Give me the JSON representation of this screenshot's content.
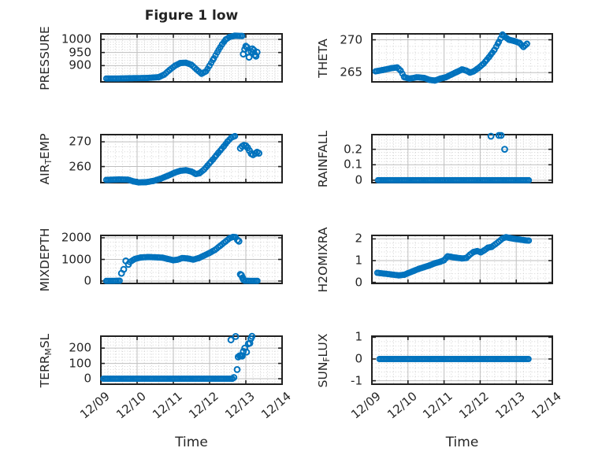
{
  "figure": {
    "title": "Figure 1 low",
    "xlabel": "Time"
  },
  "colors": {
    "marker": "#0072BD",
    "axis_box": "#212121",
    "tick_text": "#262626",
    "grid_major": "#bfbfbf",
    "grid_minor": "#d2d2d2",
    "background": "#ffffff"
  },
  "x_axis": {
    "tick_labels": [
      "12/09",
      "12/10",
      "12/11",
      "12/12",
      "12/13",
      "12/14"
    ],
    "lim_days": [
      0,
      5
    ],
    "minor_step_days": 0.2
  },
  "chart_data": [
    {
      "type": "scatter",
      "name": "PRESSURE",
      "row": 1,
      "col": 1,
      "ylabel_parts": [
        {
          "t": "PRESSURE"
        }
      ],
      "yticks": [
        900,
        950,
        1000
      ],
      "ylim": [
        838,
        1021
      ],
      "y_minor_step": 10,
      "segments": [
        [
          [
            0.15,
            851
          ],
          [
            0.5,
            851
          ],
          [
            0.9,
            852
          ],
          [
            1.3,
            853
          ],
          [
            1.6,
            856
          ],
          [
            1.75,
            866
          ],
          [
            1.9,
            884
          ],
          [
            2.05,
            900
          ],
          [
            2.2,
            910
          ],
          [
            2.35,
            911
          ],
          [
            2.5,
            903
          ],
          [
            2.65,
            884
          ],
          [
            2.78,
            869
          ],
          [
            2.9,
            878
          ],
          [
            3.0,
            900
          ],
          [
            3.12,
            928
          ],
          [
            3.25,
            960
          ],
          [
            3.35,
            982
          ],
          [
            3.45,
            1000
          ],
          [
            3.55,
            1009
          ],
          [
            3.7,
            1014
          ],
          [
            3.9,
            1013
          ]
        ]
      ],
      "points": [
        [
          3.93,
          944
        ],
        [
          3.97,
          962
        ],
        [
          4.0,
          974
        ],
        [
          4.03,
          970
        ],
        [
          4.06,
          951
        ],
        [
          4.09,
          932
        ],
        [
          4.15,
          953
        ],
        [
          4.18,
          964
        ],
        [
          4.22,
          959
        ],
        [
          4.25,
          941
        ],
        [
          4.28,
          936
        ],
        [
          4.31,
          951
        ]
      ]
    },
    {
      "type": "scatter",
      "name": "THETA",
      "row": 1,
      "col": 2,
      "ylabel_parts": [
        {
          "t": "THETA"
        }
      ],
      "yticks": [
        265,
        270
      ],
      "ylim": [
        263.6,
        270.9
      ],
      "y_minor_step": 1,
      "segments": [
        [
          [
            0.1,
            265.2
          ],
          [
            0.3,
            265.4
          ],
          [
            0.55,
            265.7
          ],
          [
            0.7,
            265.8
          ],
          [
            0.8,
            265.3
          ],
          [
            0.9,
            264.3
          ],
          [
            1.05,
            264.1
          ],
          [
            1.25,
            264.3
          ],
          [
            1.45,
            264.2
          ],
          [
            1.6,
            263.9
          ],
          [
            1.75,
            263.8
          ],
          [
            1.9,
            264.1
          ],
          [
            2.05,
            264.3
          ],
          [
            2.2,
            264.7
          ],
          [
            2.35,
            265.1
          ],
          [
            2.5,
            265.5
          ],
          [
            2.62,
            265.3
          ],
          [
            2.72,
            265.0
          ],
          [
            2.82,
            265.2
          ],
          [
            2.95,
            265.7
          ],
          [
            3.1,
            266.4
          ],
          [
            3.25,
            267.4
          ],
          [
            3.4,
            268.5
          ],
          [
            3.52,
            269.7
          ],
          [
            3.62,
            270.8
          ],
          [
            3.7,
            270.4
          ],
          [
            3.8,
            270.0
          ],
          [
            3.95,
            269.8
          ],
          [
            4.1,
            269.5
          ],
          [
            4.2,
            268.9
          ],
          [
            4.3,
            269.4
          ]
        ]
      ],
      "points": []
    },
    {
      "type": "scatter",
      "name": "AIR_TEMP",
      "row": 2,
      "col": 1,
      "ylabel_parts": [
        {
          "t": "AIR"
        },
        {
          "t": "T",
          "sub": true
        },
        {
          "t": "EMP"
        }
      ],
      "yticks": [
        260,
        270
      ],
      "ylim": [
        253.5,
        272.9
      ],
      "y_minor_step": 2,
      "segments": [
        [
          [
            0.15,
            254.6
          ],
          [
            0.5,
            254.8
          ],
          [
            0.75,
            254.7
          ],
          [
            0.9,
            254.0
          ],
          [
            1.05,
            253.6
          ],
          [
            1.25,
            253.7
          ],
          [
            1.45,
            254.2
          ],
          [
            1.65,
            255.1
          ],
          [
            1.85,
            256.3
          ],
          [
            2.05,
            257.6
          ],
          [
            2.2,
            258.3
          ],
          [
            2.35,
            258.5
          ],
          [
            2.5,
            258.0
          ],
          [
            2.62,
            257.0
          ],
          [
            2.72,
            257.3
          ],
          [
            2.85,
            258.8
          ],
          [
            2.95,
            260.5
          ],
          [
            3.1,
            263.0
          ],
          [
            3.25,
            265.7
          ],
          [
            3.4,
            268.3
          ],
          [
            3.5,
            270.2
          ],
          [
            3.6,
            271.7
          ],
          [
            3.7,
            272.3
          ]
        ]
      ],
      "points": [
        [
          3.85,
          267.4
        ],
        [
          3.9,
          268.2
        ],
        [
          3.95,
          268.6
        ],
        [
          4.0,
          268.4
        ],
        [
          4.05,
          267.6
        ],
        [
          4.1,
          266.4
        ],
        [
          4.15,
          265.2
        ],
        [
          4.2,
          264.8
        ],
        [
          4.26,
          265.3
        ],
        [
          4.31,
          265.8
        ],
        [
          4.36,
          265.4
        ]
      ]
    },
    {
      "type": "scatter",
      "name": "RAINFALL",
      "row": 2,
      "col": 2,
      "ylabel_parts": [
        {
          "t": "RAINFALL"
        }
      ],
      "yticks": [
        0,
        0.1,
        0.2
      ],
      "ylim": [
        -0.016,
        0.295
      ],
      "y_minor_step": 0.02,
      "segments": [
        [
          [
            0.17,
            0
          ],
          [
            4.35,
            0
          ]
        ]
      ],
      "points": [
        [
          3.3,
          0.285
        ],
        [
          3.52,
          0.29
        ],
        [
          3.58,
          0.29
        ],
        [
          3.68,
          0.2
        ]
      ]
    },
    {
      "type": "scatter",
      "name": "MIXDEPTH",
      "row": 3,
      "col": 1,
      "ylabel_parts": [
        {
          "t": "MIXDEPTH"
        }
      ],
      "yticks": [
        0,
        1000,
        2000
      ],
      "ylim": [
        -110,
        2110
      ],
      "y_minor_step": 200,
      "segments": [
        [
          [
            0.15,
            5
          ],
          [
            0.52,
            15
          ]
        ],
        [
          [
            0.8,
            880
          ],
          [
            0.95,
            1030
          ],
          [
            1.1,
            1090
          ],
          [
            1.3,
            1110
          ],
          [
            1.5,
            1100
          ],
          [
            1.7,
            1080
          ],
          [
            1.85,
            1020
          ],
          [
            2.0,
            960
          ],
          [
            2.12,
            990
          ],
          [
            2.25,
            1065
          ],
          [
            2.4,
            1040
          ],
          [
            2.55,
            990
          ],
          [
            2.7,
            1060
          ],
          [
            2.85,
            1180
          ],
          [
            3.0,
            1300
          ],
          [
            3.15,
            1440
          ],
          [
            3.3,
            1640
          ],
          [
            3.45,
            1840
          ],
          [
            3.55,
            1980
          ],
          [
            3.65,
            2040
          ],
          [
            3.72,
            2030
          ]
        ],
        [
          [
            3.97,
            15
          ],
          [
            4.32,
            5
          ]
        ]
      ],
      "points": [
        [
          0.57,
          360
        ],
        [
          0.63,
          540
        ],
        [
          0.69,
          930
        ],
        [
          0.76,
          770
        ],
        [
          3.77,
          1900
        ],
        [
          3.81,
          1840
        ],
        [
          3.85,
          310
        ],
        [
          3.88,
          265
        ],
        [
          3.91,
          150
        ],
        [
          3.94,
          60
        ]
      ]
    },
    {
      "type": "scatter",
      "name": "H2OMIXRA",
      "row": 3,
      "col": 2,
      "ylabel_parts": [
        {
          "t": "H2OMIXRA"
        }
      ],
      "yticks": [
        0,
        1,
        2
      ],
      "ylim": [
        -0.05,
        2.16
      ],
      "y_minor_step": 0.2,
      "segments": [
        [
          [
            0.15,
            0.44
          ],
          [
            0.35,
            0.4
          ],
          [
            0.55,
            0.36
          ],
          [
            0.75,
            0.32
          ],
          [
            0.9,
            0.35
          ],
          [
            1.0,
            0.42
          ],
          [
            1.15,
            0.52
          ],
          [
            1.3,
            0.62
          ],
          [
            1.45,
            0.7
          ],
          [
            1.6,
            0.78
          ],
          [
            1.75,
            0.88
          ],
          [
            1.9,
            0.95
          ],
          [
            2.0,
            1.02
          ],
          [
            2.1,
            1.2
          ],
          [
            2.2,
            1.17
          ],
          [
            2.35,
            1.13
          ],
          [
            2.5,
            1.1
          ],
          [
            2.62,
            1.12
          ],
          [
            2.72,
            1.28
          ],
          [
            2.82,
            1.4
          ],
          [
            2.92,
            1.44
          ],
          [
            3.02,
            1.38
          ],
          [
            3.12,
            1.48
          ],
          [
            3.22,
            1.6
          ],
          [
            3.32,
            1.63
          ],
          [
            3.42,
            1.75
          ],
          [
            3.52,
            1.88
          ],
          [
            3.62,
            2.02
          ],
          [
            3.72,
            2.08
          ],
          [
            3.82,
            2.04
          ],
          [
            3.95,
            2.0
          ],
          [
            4.1,
            1.97
          ],
          [
            4.25,
            1.93
          ],
          [
            4.35,
            1.92
          ]
        ]
      ],
      "points": []
    },
    {
      "type": "scatter",
      "name": "TERR_MSL",
      "row": 4,
      "col": 1,
      "ylabel_parts": [
        {
          "t": "TERR"
        },
        {
          "t": "M",
          "sub": true
        },
        {
          "t": "SL"
        }
      ],
      "yticks": [
        0,
        100,
        200
      ],
      "ylim": [
        -36,
        278
      ],
      "y_minor_step": 20,
      "segments": [
        [
          [
            0.07,
            0
          ],
          [
            3.63,
            0
          ]
        ]
      ],
      "points": [
        [
          3.59,
          254
        ],
        [
          3.72,
          276
        ],
        [
          3.67,
          8
        ],
        [
          3.76,
          60
        ],
        [
          3.79,
          142
        ],
        [
          3.83,
          150
        ],
        [
          3.87,
          152
        ],
        [
          3.9,
          148
        ],
        [
          3.93,
          178
        ],
        [
          3.97,
          200
        ],
        [
          4.02,
          174
        ],
        [
          4.07,
          228
        ],
        [
          4.11,
          232
        ],
        [
          4.14,
          262
        ],
        [
          4.17,
          277
        ]
      ]
    },
    {
      "type": "scatter",
      "name": "SUN_FLUX",
      "row": 4,
      "col": 2,
      "ylabel_parts": [
        {
          "t": "SUN"
        },
        {
          "t": "F",
          "sub": true
        },
        {
          "t": "LUX"
        }
      ],
      "yticks": [
        -1,
        0,
        1
      ],
      "ylim": [
        -1.16,
        1.05
      ],
      "y_minor_step": 0.2,
      "segments": [
        [
          [
            0.21,
            0
          ],
          [
            4.34,
            0
          ]
        ]
      ],
      "points": []
    }
  ]
}
